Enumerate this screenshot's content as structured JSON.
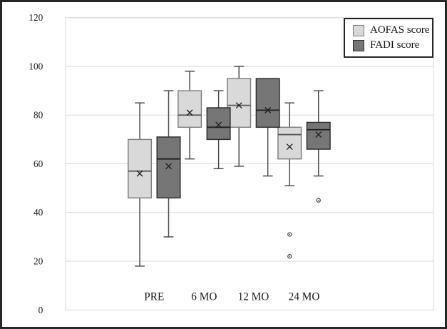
{
  "figure": {
    "background": "#ffffff",
    "outer_border_color": "#262626",
    "gridline_color": "#d9d9d9",
    "whisker_color": "#4d4d4d",
    "text_color": "#1a1a1a"
  },
  "legend": {
    "position": "top-right",
    "entries": [
      {
        "label": "AOFAS score",
        "swatch_color": "#d9d9d9",
        "swatch_border": "#7f7f7f"
      },
      {
        "label": "FADI score",
        "swatch_color": "#767676",
        "swatch_border": "#2f2f2f"
      }
    ]
  },
  "chart_data": {
    "type": "boxplot",
    "title": "",
    "xlabel": "",
    "ylabel": "",
    "grid": true,
    "legend_position": "top-right",
    "categories": [
      "PRE",
      "6 MO",
      "12 MO",
      "24 MO"
    ],
    "y_axis": {
      "min": 0,
      "max": 120,
      "tick_step": 20,
      "tick_labels": [
        "0",
        "20",
        "40",
        "60",
        "80",
        "100",
        "120"
      ]
    },
    "series": [
      {
        "name": "AOFAS score",
        "fill_color": "#d9d9d9",
        "border_color": "#7f7f7f",
        "median_color": "#565656",
        "boxes": [
          {
            "category": "PRE",
            "min": 18,
            "q1": 46,
            "median": 57,
            "q3": 70,
            "max": 85,
            "mean": 56,
            "outliers": []
          },
          {
            "category": "6 MO",
            "min": 62,
            "q1": 75,
            "median": 80,
            "q3": 90,
            "max": 98,
            "mean": 81,
            "outliers": []
          },
          {
            "category": "12 MO",
            "min": 59,
            "q1": 75,
            "median": 84,
            "q3": 95,
            "max": 100,
            "mean": 84,
            "outliers": []
          },
          {
            "category": "24 MO",
            "min": 51,
            "q1": 62,
            "median": 72,
            "q3": 75,
            "max": 85,
            "mean": 67,
            "outliers": [
              31,
              22
            ]
          }
        ]
      },
      {
        "name": "FADI score",
        "fill_color": "#767676",
        "border_color": "#2f2f2f",
        "median_color": "#1f1f1f",
        "boxes": [
          {
            "category": "PRE",
            "min": 30,
            "q1": 46,
            "median": 62,
            "q3": 71,
            "max": 90,
            "mean": 59,
            "outliers": []
          },
          {
            "category": "6 MO",
            "min": 58,
            "q1": 70,
            "median": 75,
            "q3": 83,
            "max": 90,
            "mean": 76,
            "outliers": []
          },
          {
            "category": "12 MO",
            "min": 55,
            "q1": 75,
            "median": 82,
            "q3": 95,
            "max": 95,
            "mean": 82,
            "outliers": []
          },
          {
            "category": "24 MO",
            "min": 55,
            "q1": 66,
            "median": 74,
            "q3": 77,
            "max": 90,
            "mean": 72,
            "outliers": [
              45
            ]
          }
        ]
      }
    ]
  }
}
